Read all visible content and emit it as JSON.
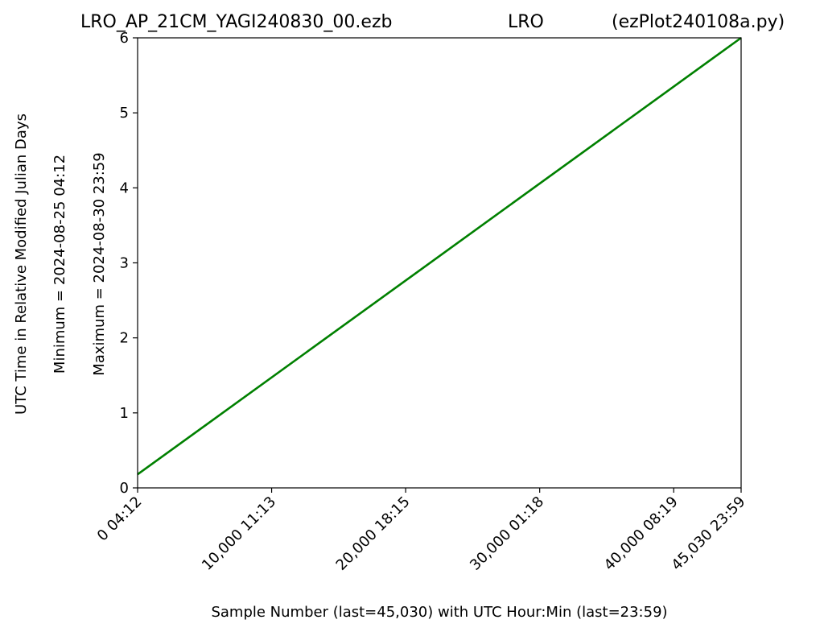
{
  "chart_data": {
    "type": "line",
    "title_left": "LRO_AP_21CM_YAGI240830_00.ezb",
    "title_center": "LRO",
    "title_right": "(ezPlot240108a.py)",
    "xlabel": "Sample Number (last=45,030) with UTC Hour:Min (last=23:59)",
    "ylabel_lines": [
      "UTC Time in Relative Modified Julian Days",
      "Minimum = 2024-08-25   04:12",
      "Maximum = 2024-08-30   23:59"
    ],
    "xlim": [
      0,
      45030
    ],
    "ylim": [
      0,
      6
    ],
    "x_ticks": [
      {
        "value": 0,
        "label": "0  04:12"
      },
      {
        "value": 10000,
        "label": "10,000  11:13"
      },
      {
        "value": 20000,
        "label": "20,000  18:15"
      },
      {
        "value": 30000,
        "label": "30,000  01:18"
      },
      {
        "value": 40000,
        "label": "40,000  08:19"
      },
      {
        "value": 45030,
        "label": "45,030  23:59"
      }
    ],
    "y_ticks": [
      0,
      1,
      2,
      3,
      4,
      5,
      6
    ],
    "grid": false,
    "series": [
      {
        "color": "#008000",
        "x": [
          0,
          45030
        ],
        "y": [
          0.18,
          6.0
        ]
      }
    ]
  }
}
